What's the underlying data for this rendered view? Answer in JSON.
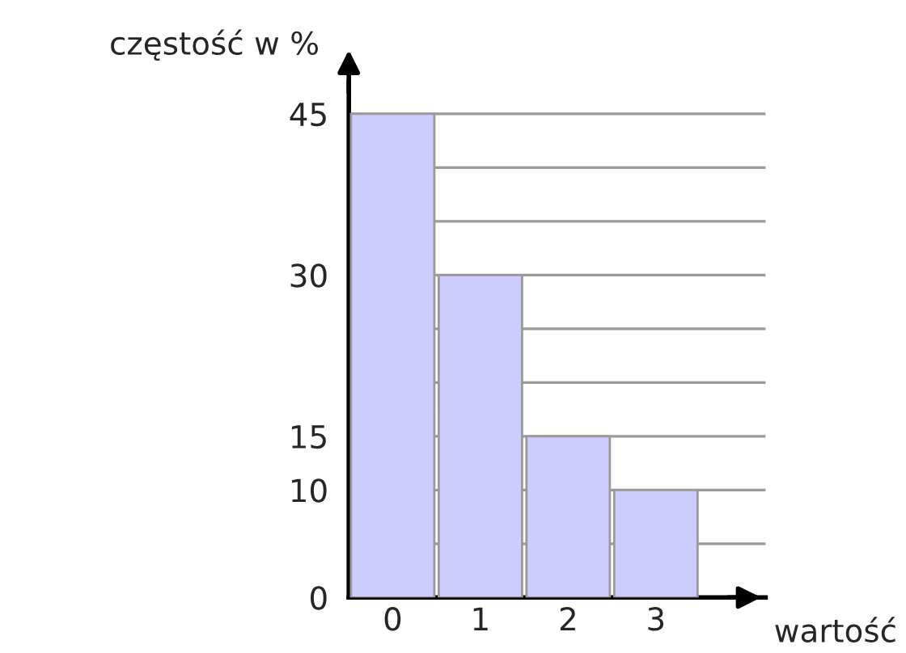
{
  "chart_data": {
    "type": "bar",
    "xlabel": "wartość",
    "ylabel": "częstość w %",
    "categories": [
      "0",
      "1",
      "2",
      "3"
    ],
    "values": [
      45,
      30,
      15,
      10
    ],
    "color": "#ccccff",
    "ylim": [
      0,
      48
    ],
    "yticks": [
      0,
      {
        "value": 5,
        "label": null
      },
      10,
      15,
      {
        "value": 20,
        "label": null
      },
      {
        "value": 25,
        "label": null
      },
      30,
      {
        "value": 35,
        "label": null
      },
      {
        "value": 40,
        "label": null
      },
      45
    ],
    "grid": "y"
  }
}
